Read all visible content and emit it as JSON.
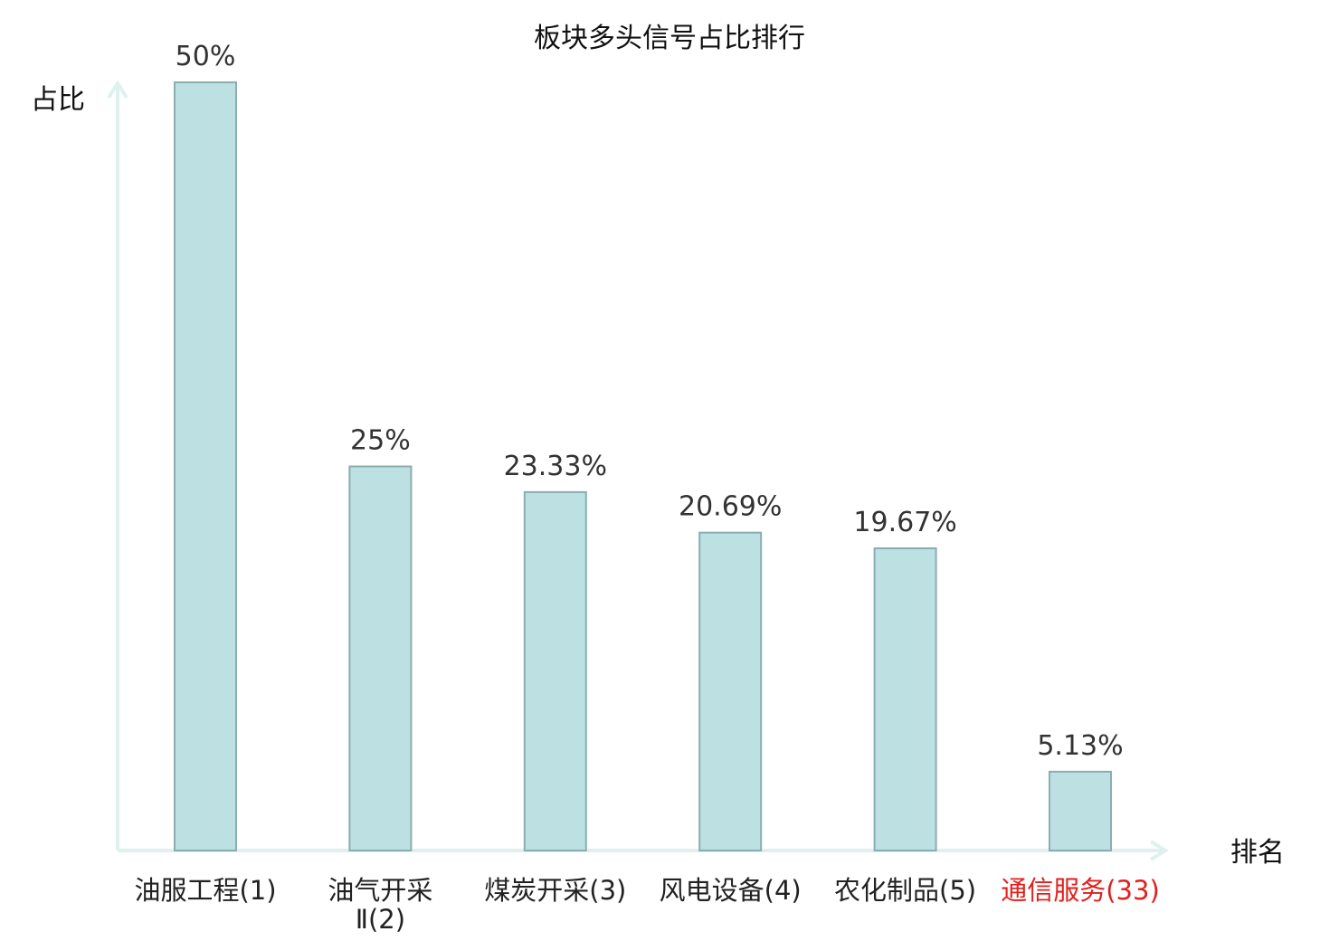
{
  "chart_data": {
    "type": "bar",
    "title": "板块多头信号占比排行",
    "ylabel": "占比",
    "xlabel": "排名",
    "categories": [
      [
        "油服工程(1)"
      ],
      [
        "油气开采",
        "Ⅱ(2)"
      ],
      [
        "煤炭开采(3)"
      ],
      [
        "风电设备(4)"
      ],
      [
        "农化制品(5)"
      ],
      [
        "通信服务(33)"
      ]
    ],
    "values": [
      50,
      25,
      23.33,
      20.69,
      19.67,
      5.13
    ],
    "value_labels": [
      "50%",
      "25%",
      "23.33%",
      "20.69%",
      "19.67%",
      "5.13%"
    ],
    "highlight_index": 5,
    "ylim": [
      0,
      50
    ],
    "grid": false,
    "colors": {
      "bar_fill": "#bde0e3",
      "bar_stroke": "#8aaeb0",
      "axis": "#dff1ee",
      "highlight_text": "#e0201c"
    }
  }
}
